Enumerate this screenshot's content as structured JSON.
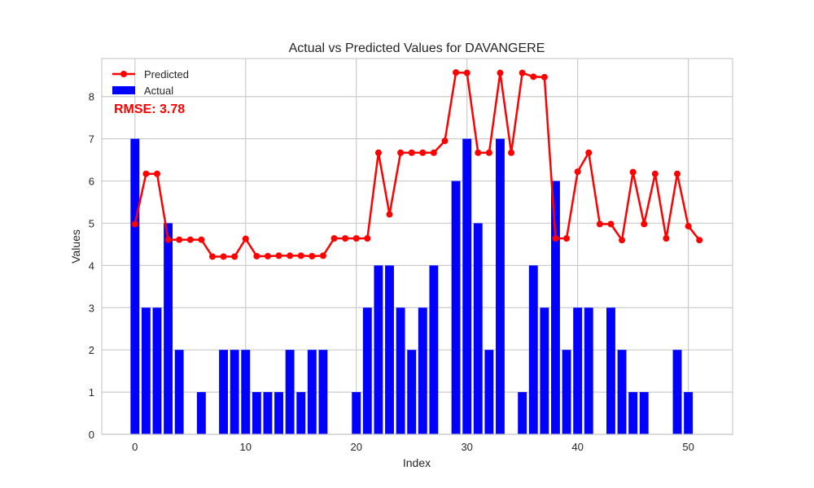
{
  "chart_data": {
    "type": "bar",
    "title": "Actual vs Predicted Values for DAVANGERE",
    "xlabel": "Index",
    "ylabel": "Values",
    "xlim": [
      -3,
      54
    ],
    "ylim": [
      0,
      8.9
    ],
    "xticks": [
      0,
      10,
      20,
      30,
      40,
      50
    ],
    "yticks": [
      0,
      1,
      2,
      3,
      4,
      5,
      6,
      7,
      8
    ],
    "grid": true,
    "legend_placement": "top-left",
    "annotation": "RMSE: 3.78",
    "annotation_color": "#ff0000",
    "x": [
      0,
      1,
      2,
      3,
      4,
      5,
      6,
      7,
      8,
      9,
      10,
      11,
      12,
      13,
      14,
      15,
      16,
      17,
      18,
      19,
      20,
      21,
      22,
      23,
      24,
      25,
      26,
      27,
      28,
      29,
      30,
      31,
      32,
      33,
      34,
      35,
      36,
      37,
      38,
      39,
      40,
      41,
      42,
      43,
      44,
      45,
      46,
      47,
      48,
      49,
      50,
      51
    ],
    "series": [
      {
        "name": "Predicted",
        "type": "line",
        "color": "#ff0000",
        "values": [
          4.98,
          6.17,
          6.17,
          4.61,
          4.61,
          4.61,
          4.61,
          4.21,
          4.21,
          4.21,
          4.63,
          4.22,
          4.22,
          4.23,
          4.23,
          4.23,
          4.22,
          4.23,
          4.64,
          4.64,
          4.64,
          4.64,
          6.67,
          5.21,
          6.67,
          6.67,
          6.67,
          6.67,
          6.95,
          8.57,
          8.56,
          6.67,
          6.67,
          8.56,
          6.67,
          8.56,
          8.47,
          8.46,
          4.64,
          4.64,
          6.22,
          6.67,
          4.98,
          4.98,
          4.6,
          6.21,
          4.98,
          6.17,
          4.64,
          6.17,
          4.93,
          4.6
        ]
      },
      {
        "name": "Actual",
        "type": "bar",
        "color": "#0000ff",
        "values": [
          7,
          3,
          3,
          5,
          2,
          0,
          1,
          0,
          2,
          2,
          2,
          1,
          1,
          1,
          2,
          1,
          2,
          2,
          0,
          0,
          1,
          3,
          4,
          4,
          3,
          2,
          3,
          4,
          0,
          6,
          7,
          5,
          2,
          7,
          0,
          1,
          4,
          3,
          6,
          2,
          3,
          3,
          0,
          3,
          2,
          1,
          1,
          0,
          0,
          2,
          1,
          0
        ]
      }
    ]
  }
}
